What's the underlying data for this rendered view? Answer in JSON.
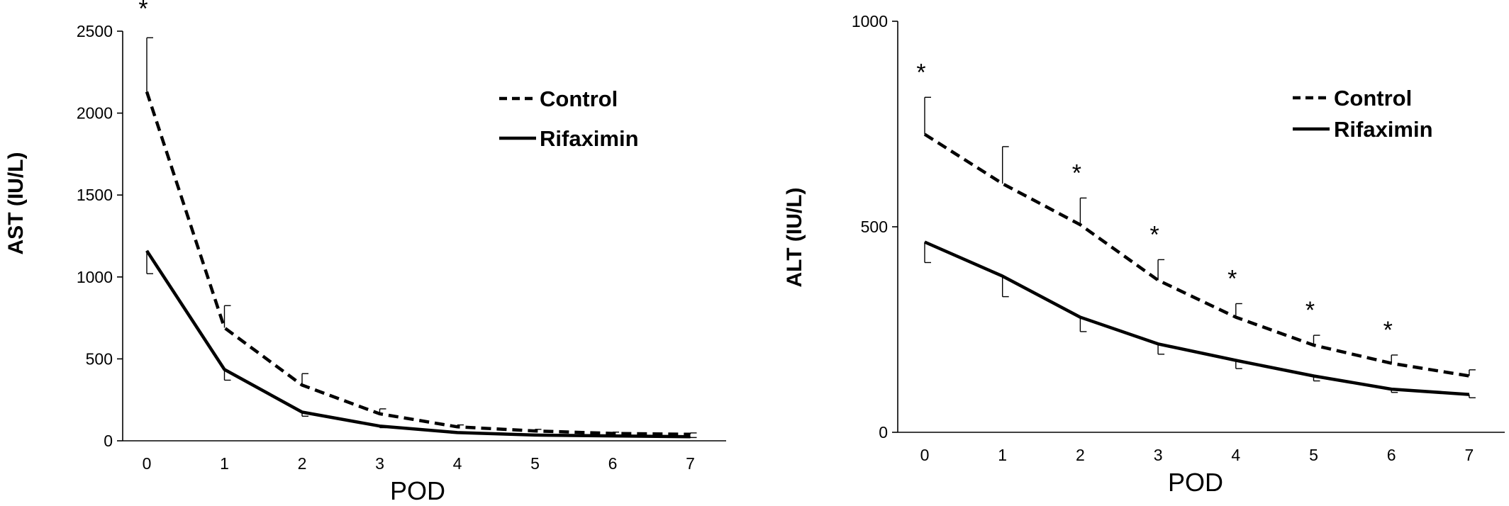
{
  "chart_data": [
    {
      "type": "line",
      "title": "",
      "xlabel": "POD",
      "ylabel": "AST (IU/L)",
      "x": [
        0,
        1,
        2,
        3,
        4,
        5,
        6,
        7
      ],
      "x_ticks": [
        "0",
        "1",
        "2",
        "3",
        "4",
        "5",
        "6",
        "7"
      ],
      "y_ticks": [
        "0",
        "500",
        "1000",
        "1500",
        "2000",
        "2500"
      ],
      "ylim": [
        0,
        2500
      ],
      "grid": false,
      "legend_position": "top-right",
      "series": [
        {
          "name": "Control",
          "style": "dashed",
          "values": [
            2130,
            690,
            340,
            165,
            85,
            60,
            45,
            40
          ],
          "error_dir": "up",
          "errors": [
            330,
            135,
            70,
            30,
            12,
            10,
            8,
            8
          ]
        },
        {
          "name": "Rifaximin",
          "style": "solid",
          "values": [
            1160,
            435,
            175,
            90,
            50,
            35,
            30,
            25
          ],
          "error_dir": "down",
          "errors": [
            140,
            65,
            25,
            10,
            5,
            5,
            5,
            5
          ]
        }
      ],
      "significance": [
        {
          "x": 0,
          "label": "*"
        }
      ]
    },
    {
      "type": "line",
      "title": "",
      "xlabel": "POD",
      "ylabel": "ALT (IU/L)",
      "x": [
        0,
        1,
        2,
        3,
        4,
        5,
        6,
        7
      ],
      "x_ticks": [
        "0",
        "1",
        "2",
        "3",
        "4",
        "5",
        "6",
        "7"
      ],
      "y_ticks": [
        "0",
        "500",
        "1000"
      ],
      "ylim": [
        0,
        1000
      ],
      "grid": false,
      "legend_position": "top-right",
      "series": [
        {
          "name": "Control",
          "style": "dashed",
          "values": [
            725,
            605,
            505,
            370,
            280,
            212,
            168,
            137
          ],
          "error_dir": "up",
          "errors": [
            90,
            90,
            65,
            50,
            33,
            24,
            20,
            15
          ]
        },
        {
          "name": "Rifaximin",
          "style": "solid",
          "values": [
            463,
            380,
            280,
            215,
            175,
            137,
            105,
            92
          ],
          "error_dir": "down",
          "errors": [
            50,
            50,
            35,
            25,
            20,
            12,
            8,
            8
          ]
        }
      ],
      "significance": [
        {
          "x": 0,
          "label": "*"
        },
        {
          "x": 2,
          "label": "*"
        },
        {
          "x": 3,
          "label": "*"
        },
        {
          "x": 4,
          "label": "*"
        },
        {
          "x": 5,
          "label": "*"
        },
        {
          "x": 6,
          "label": "*"
        }
      ]
    }
  ]
}
